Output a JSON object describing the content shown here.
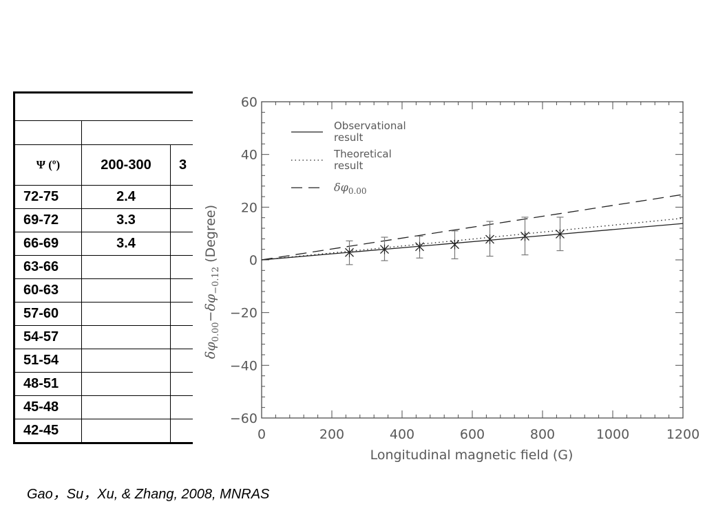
{
  "table": {
    "header": [
      "Ψ (º)",
      "200-300",
      "3"
    ],
    "rows": [
      [
        "72-75",
        "2.4",
        ""
      ],
      [
        "69-72",
        "3.3",
        ""
      ],
      [
        "66-69",
        "3.4",
        ""
      ],
      [
        "63-66",
        "",
        ""
      ],
      [
        "60-63",
        "",
        ""
      ],
      [
        "57-60",
        "",
        ""
      ],
      [
        "54-57",
        "",
        ""
      ],
      [
        "51-54",
        "",
        ""
      ],
      [
        "48-51",
        "",
        ""
      ],
      [
        "45-48",
        "",
        ""
      ],
      [
        "42-45",
        "",
        ""
      ]
    ]
  },
  "chart_data": {
    "type": "line",
    "xlabel": "Longitudinal magnetic field (G)",
    "ylabel_parts": {
      "a": "δφ",
      "a_sub": "0.00",
      "op": "−δφ",
      "b_sub": "−0.12",
      "unit": " (Degree)"
    },
    "xlim": [
      0,
      1200
    ],
    "ylim": [
      -60,
      60
    ],
    "x_ticks": [
      0,
      200,
      400,
      600,
      800,
      1000,
      1200
    ],
    "y_ticks": [
      -60,
      -40,
      -20,
      0,
      20,
      40,
      60
    ],
    "grid": false,
    "legend_position": "top-left",
    "series": [
      {
        "name": "Observational result",
        "legend_lines": [
          "Observational",
          "result"
        ],
        "style": "solid",
        "x": [
          0,
          1200
        ],
        "y": [
          0,
          13.8
        ]
      },
      {
        "name": "Theoretical result",
        "legend_lines": [
          "Theoretical",
          "result"
        ],
        "style": "dotted",
        "x": [
          0,
          1200
        ],
        "y": [
          0,
          15.8
        ]
      },
      {
        "name": "δφ 0.00",
        "legend_math": {
          "sym": "δφ",
          "sub": "0.00"
        },
        "style": "dashed",
        "x": [
          0,
          1200
        ],
        "y": [
          0,
          24.8
        ]
      }
    ],
    "points": {
      "marker": "× (star)",
      "x": [
        250,
        350,
        450,
        550,
        650,
        750,
        850
      ],
      "y": [
        2.8,
        4.0,
        5.0,
        5.8,
        7.8,
        9.0,
        9.8
      ],
      "err_low": [
        -1.8,
        -0.3,
        0.7,
        0.4,
        1.4,
        1.9,
        3.5
      ],
      "err_high": [
        7.2,
        8.6,
        9.0,
        11.0,
        14.6,
        16.2,
        16.2
      ]
    },
    "colors": {
      "axis": "#4d4d4d",
      "data": "#222222",
      "errbar": "#777777"
    }
  },
  "citation": "Gao，Su，Xu, & Zhang, 2008, MNRAS"
}
